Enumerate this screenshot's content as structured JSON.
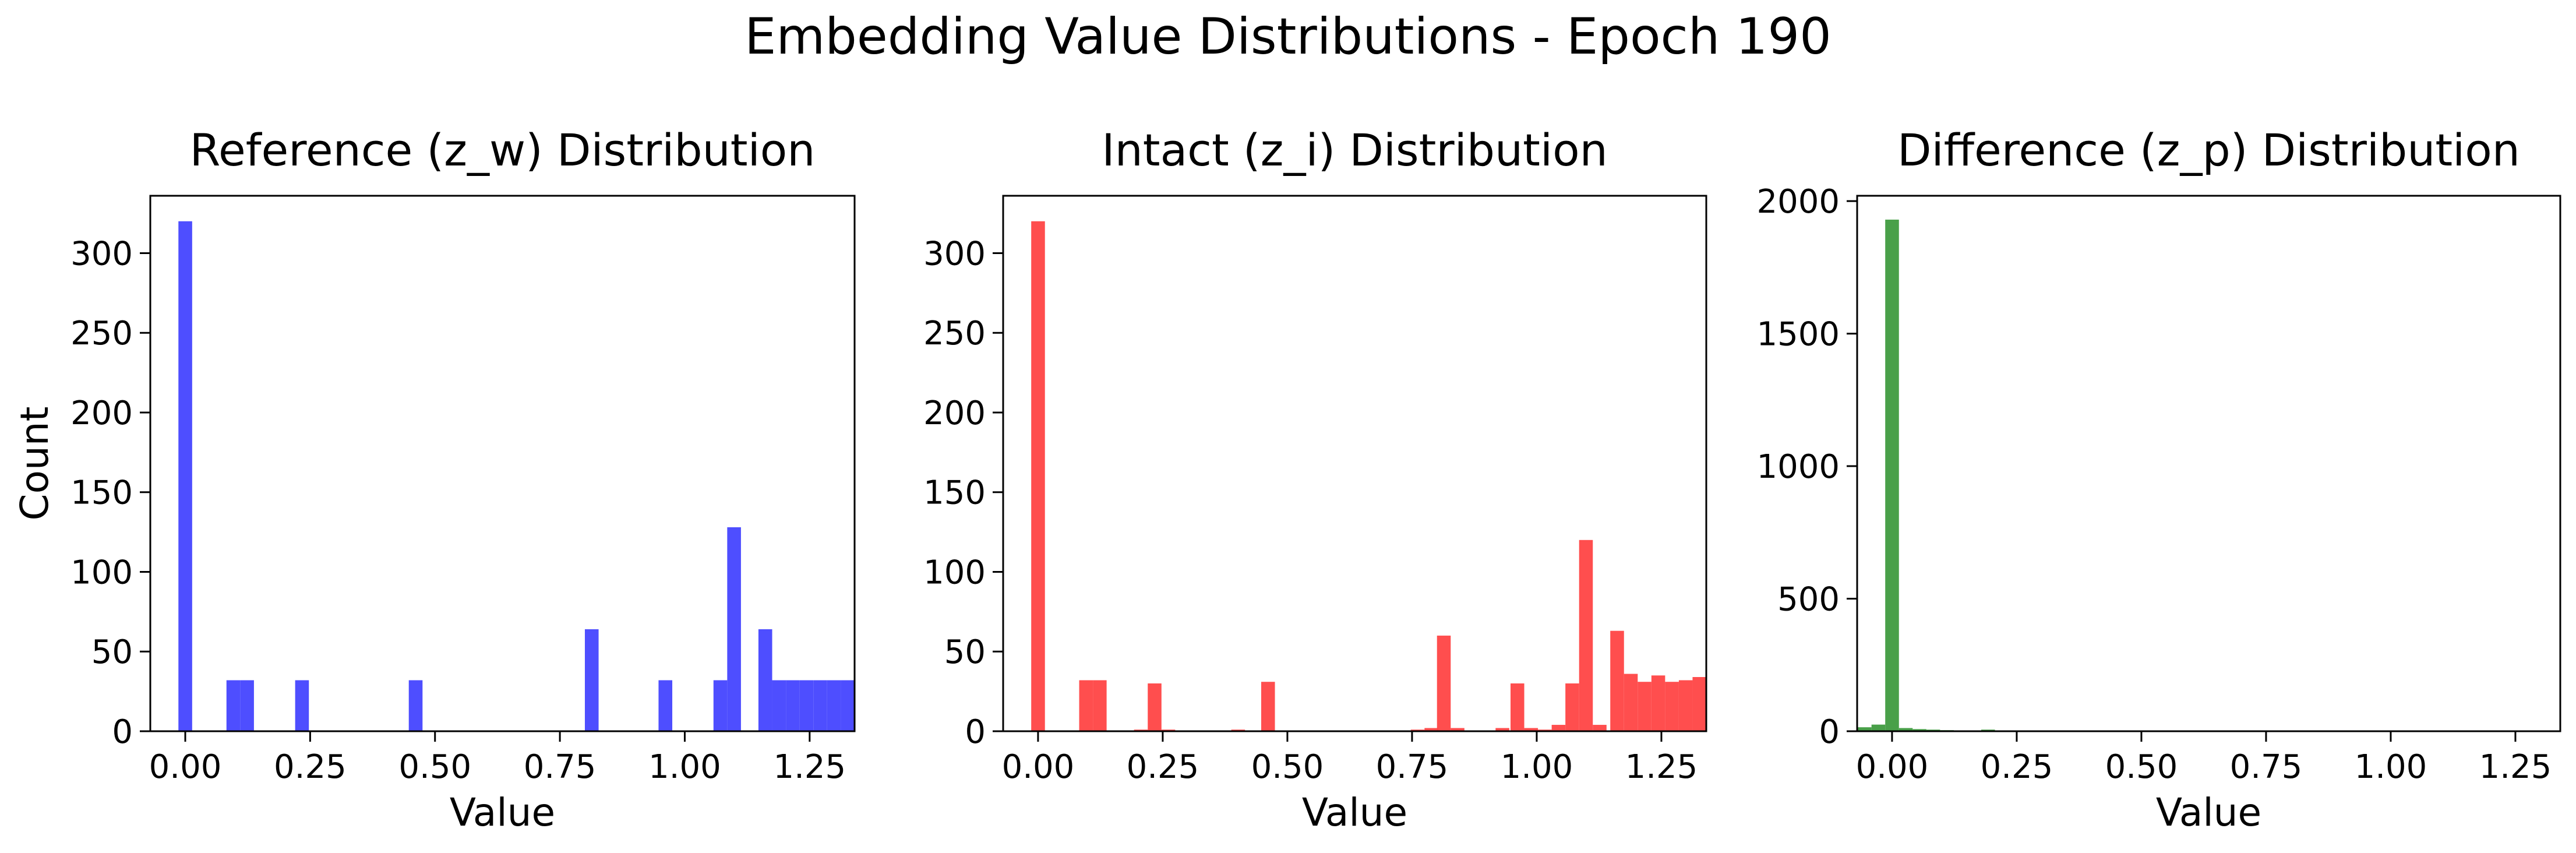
{
  "figure": {
    "title": "Embedding Value Distributions - Epoch 190"
  },
  "colors": {
    "reference": "#4444ff",
    "intact": "#ff4444",
    "difference": "#3f9b3f"
  },
  "chart_data": [
    {
      "type": "bar",
      "title": "Reference (z_w) Distribution",
      "xlabel": "Value",
      "ylabel": "Count",
      "color_key": "reference",
      "xlim": [
        -0.07,
        1.34
      ],
      "ylim": [
        0,
        336
      ],
      "xticks": [
        0.0,
        0.25,
        0.5,
        0.75,
        1.0,
        1.25
      ],
      "xtick_labels": [
        "0.00",
        "0.25",
        "0.50",
        "0.75",
        "1.00",
        "1.25"
      ],
      "yticks": [
        0,
        50,
        100,
        150,
        200,
        250,
        300
      ],
      "ytick_labels": [
        "0",
        "50",
        "100",
        "150",
        "200",
        "250",
        "300"
      ],
      "bin_width": 0.0275,
      "bins": [
        {
          "x": -0.0137,
          "count": 320
        },
        {
          "x": 0.0825,
          "count": 32
        },
        {
          "x": 0.11,
          "count": 32
        },
        {
          "x": 0.22,
          "count": 32
        },
        {
          "x": 0.4475,
          "count": 32
        },
        {
          "x": 0.8,
          "count": 64
        },
        {
          "x": 0.9475,
          "count": 32
        },
        {
          "x": 1.0575,
          "count": 32
        },
        {
          "x": 1.085,
          "count": 128
        },
        {
          "x": 1.1475,
          "count": 64
        },
        {
          "x": 1.175,
          "count": 32
        },
        {
          "x": 1.2025,
          "count": 32
        },
        {
          "x": 1.23,
          "count": 32
        },
        {
          "x": 1.2575,
          "count": 32
        },
        {
          "x": 1.285,
          "count": 32
        },
        {
          "x": 1.3125,
          "count": 32
        }
      ]
    },
    {
      "type": "bar",
      "title": "Intact (z_i) Distribution",
      "xlabel": "Value",
      "ylabel": "",
      "color_key": "intact",
      "xlim": [
        -0.07,
        1.34
      ],
      "ylim": [
        0,
        336
      ],
      "xticks": [
        0.0,
        0.25,
        0.5,
        0.75,
        1.0,
        1.25
      ],
      "xtick_labels": [
        "0.00",
        "0.25",
        "0.50",
        "0.75",
        "1.00",
        "1.25"
      ],
      "yticks": [
        0,
        50,
        100,
        150,
        200,
        250,
        300
      ],
      "ytick_labels": [
        "0",
        "50",
        "100",
        "150",
        "200",
        "250",
        "300"
      ],
      "bin_width": 0.0275,
      "bins": [
        {
          "x": -0.0137,
          "count": 320
        },
        {
          "x": 0.0825,
          "count": 32
        },
        {
          "x": 0.11,
          "count": 32
        },
        {
          "x": 0.1925,
          "count": 1
        },
        {
          "x": 0.22,
          "count": 30
        },
        {
          "x": 0.2475,
          "count": 1
        },
        {
          "x": 0.3875,
          "count": 1
        },
        {
          "x": 0.4475,
          "count": 31
        },
        {
          "x": 0.7475,
          "count": 1
        },
        {
          "x": 0.775,
          "count": 2
        },
        {
          "x": 0.8,
          "count": 60
        },
        {
          "x": 0.8275,
          "count": 2
        },
        {
          "x": 0.9175,
          "count": 2
        },
        {
          "x": 0.9475,
          "count": 30
        },
        {
          "x": 0.975,
          "count": 2
        },
        {
          "x": 1.0025,
          "count": 1
        },
        {
          "x": 1.03,
          "count": 4
        },
        {
          "x": 1.0575,
          "count": 30
        },
        {
          "x": 1.085,
          "count": 120
        },
        {
          "x": 1.1125,
          "count": 4
        },
        {
          "x": 1.1475,
          "count": 63
        },
        {
          "x": 1.175,
          "count": 36
        },
        {
          "x": 1.2025,
          "count": 31
        },
        {
          "x": 1.23,
          "count": 35
        },
        {
          "x": 1.2575,
          "count": 31
        },
        {
          "x": 1.285,
          "count": 32
        },
        {
          "x": 1.3125,
          "count": 34
        }
      ]
    },
    {
      "type": "bar",
      "title": "Difference (z_p) Distribution",
      "xlabel": "Value",
      "ylabel": "",
      "color_key": "difference",
      "xlim": [
        -0.07,
        1.34
      ],
      "ylim": [
        0,
        2020
      ],
      "xticks": [
        0.0,
        0.25,
        0.5,
        0.75,
        1.0,
        1.25
      ],
      "xtick_labels": [
        "0.00",
        "0.25",
        "0.50",
        "0.75",
        "1.00",
        "1.25"
      ],
      "yticks": [
        0,
        500,
        1000,
        1500,
        2000
      ],
      "ytick_labels": [
        "0",
        "500",
        "1000",
        "1500",
        "2000"
      ],
      "bin_width": 0.0275,
      "bins": [
        {
          "x": -0.0687,
          "count": 15
        },
        {
          "x": -0.0412,
          "count": 25
        },
        {
          "x": -0.0137,
          "count": 1930
        },
        {
          "x": 0.0138,
          "count": 12
        },
        {
          "x": 0.0413,
          "count": 8
        },
        {
          "x": 0.0688,
          "count": 6
        },
        {
          "x": 0.0963,
          "count": 4
        },
        {
          "x": 0.1238,
          "count": 2
        },
        {
          "x": 0.1513,
          "count": 2
        },
        {
          "x": 0.1788,
          "count": 6
        },
        {
          "x": 0.2063,
          "count": 1
        }
      ]
    }
  ]
}
